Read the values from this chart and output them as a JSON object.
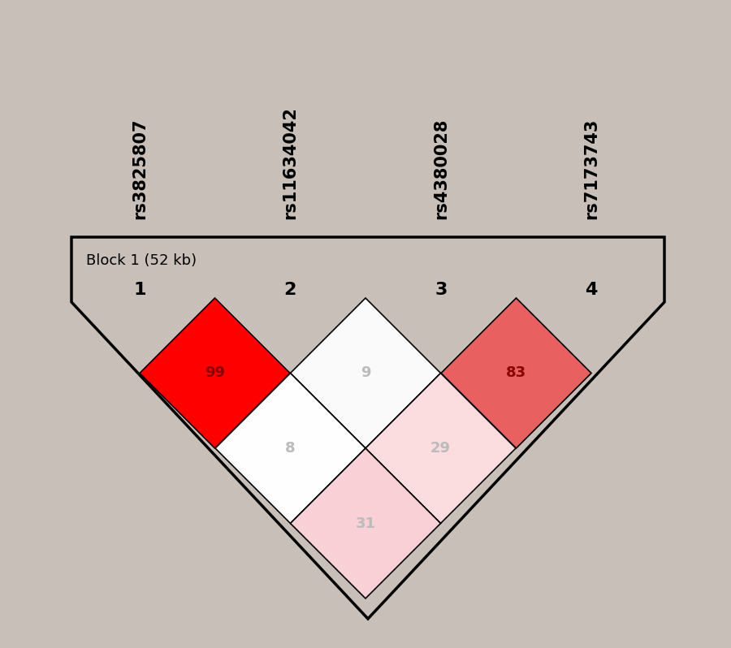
{
  "snps": [
    "rs3825807",
    "rs11634042",
    "rs4380028",
    "rs7173743"
  ],
  "block_label": "Block 1 (52 kb)",
  "snp_numbers": [
    "1",
    "2",
    "3",
    "4"
  ],
  "r2_matrix": [
    [
      99,
      9,
      83
    ],
    [
      8,
      29
    ],
    [
      31
    ]
  ],
  "r2_colors": [
    [
      "#FF0000",
      "#FAFAFA",
      "#E86060"
    ],
    [
      "#FEFEFE",
      "#FBDDE0"
    ],
    [
      "#F9D0D5"
    ]
  ],
  "r2_text_colors": [
    [
      "#8B0000",
      "#BBBBBB",
      "#8B0000"
    ],
    [
      "#BBBBBB",
      "#BBBBBB"
    ],
    [
      "#BBBBBB"
    ]
  ],
  "background_color": "#C8C0B8",
  "figsize": [
    9.0,
    7.98
  ],
  "dpi": 100,
  "snp_label_fontsize": 15,
  "number_fontsize": 16,
  "block_label_fontsize": 13,
  "diamond_value_fontsize": 13
}
